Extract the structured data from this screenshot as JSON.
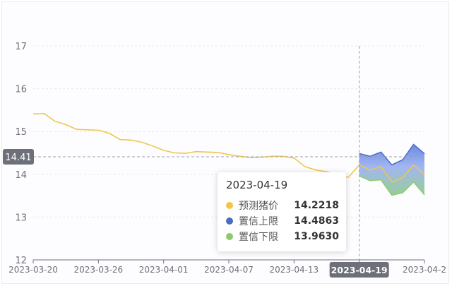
{
  "chart_data": {
    "type": "line",
    "xlabel": "",
    "ylabel": "",
    "ylim": [
      12,
      17
    ],
    "y_ticks": [
      "12",
      "13",
      "14",
      "15",
      "16",
      "17"
    ],
    "x_tick_labels": [
      "2023-03-20",
      "2023-03-26",
      "2023-04-01",
      "2023-04-07",
      "2023-04-13",
      "2023-04-19",
      "2023-04-2"
    ],
    "dates": [
      "2023-03-20",
      "2023-03-21",
      "2023-03-22",
      "2023-03-23",
      "2023-03-24",
      "2023-03-25",
      "2023-03-26",
      "2023-03-27",
      "2023-03-28",
      "2023-03-29",
      "2023-03-30",
      "2023-03-31",
      "2023-04-01",
      "2023-04-02",
      "2023-04-03",
      "2023-04-04",
      "2023-04-05",
      "2023-04-06",
      "2023-04-07",
      "2023-04-08",
      "2023-04-09",
      "2023-04-10",
      "2023-04-11",
      "2023-04-12",
      "2023-04-13",
      "2023-04-14",
      "2023-04-15",
      "2023-04-16",
      "2023-04-17",
      "2023-04-18",
      "2023-04-19",
      "2023-04-20",
      "2023-04-21",
      "2023-04-22",
      "2023-04-23",
      "2023-04-24",
      "2023-04-25"
    ],
    "series": [
      {
        "name": "预测猪价",
        "color": "#f0c64a",
        "values": [
          15.41,
          15.42,
          15.24,
          15.16,
          15.05,
          15.04,
          15.03,
          14.96,
          14.81,
          14.8,
          14.75,
          14.66,
          14.56,
          14.5,
          14.49,
          14.53,
          14.52,
          14.51,
          14.46,
          14.42,
          14.39,
          14.4,
          14.42,
          14.42,
          14.38,
          14.18,
          14.1,
          14.06,
          13.98,
          13.93,
          14.22,
          14.1,
          14.18,
          13.82,
          13.92,
          14.22,
          13.98
        ]
      },
      {
        "name": "置信上限",
        "color": "#4a6bc3",
        "values": [
          null,
          null,
          null,
          null,
          null,
          null,
          null,
          null,
          null,
          null,
          null,
          null,
          null,
          null,
          null,
          null,
          null,
          null,
          null,
          null,
          null,
          null,
          null,
          null,
          null,
          null,
          null,
          null,
          null,
          null,
          14.4863,
          14.42,
          14.52,
          14.22,
          14.34,
          14.7,
          14.48
        ]
      },
      {
        "name": "置信下限",
        "color": "#8fc96e",
        "values": [
          null,
          null,
          null,
          null,
          null,
          null,
          null,
          null,
          null,
          null,
          null,
          null,
          null,
          null,
          null,
          null,
          null,
          null,
          null,
          null,
          null,
          null,
          null,
          null,
          null,
          null,
          null,
          null,
          null,
          null,
          13.963,
          13.85,
          13.87,
          13.51,
          13.57,
          13.82,
          13.52
        ]
      }
    ],
    "crosshair": {
      "x_label": "2023-04-19",
      "y_label": "14.41",
      "y_value": 14.41
    },
    "tooltip": {
      "title": "2023-04-19",
      "rows": [
        {
          "name": "预测猪价",
          "value": "14.2218",
          "color": "#f0c64a"
        },
        {
          "name": "置信上限",
          "value": "14.4863",
          "color": "#4a6bc3"
        },
        {
          "name": "置信下限",
          "value": "13.9630",
          "color": "#8fc96e"
        }
      ]
    }
  }
}
